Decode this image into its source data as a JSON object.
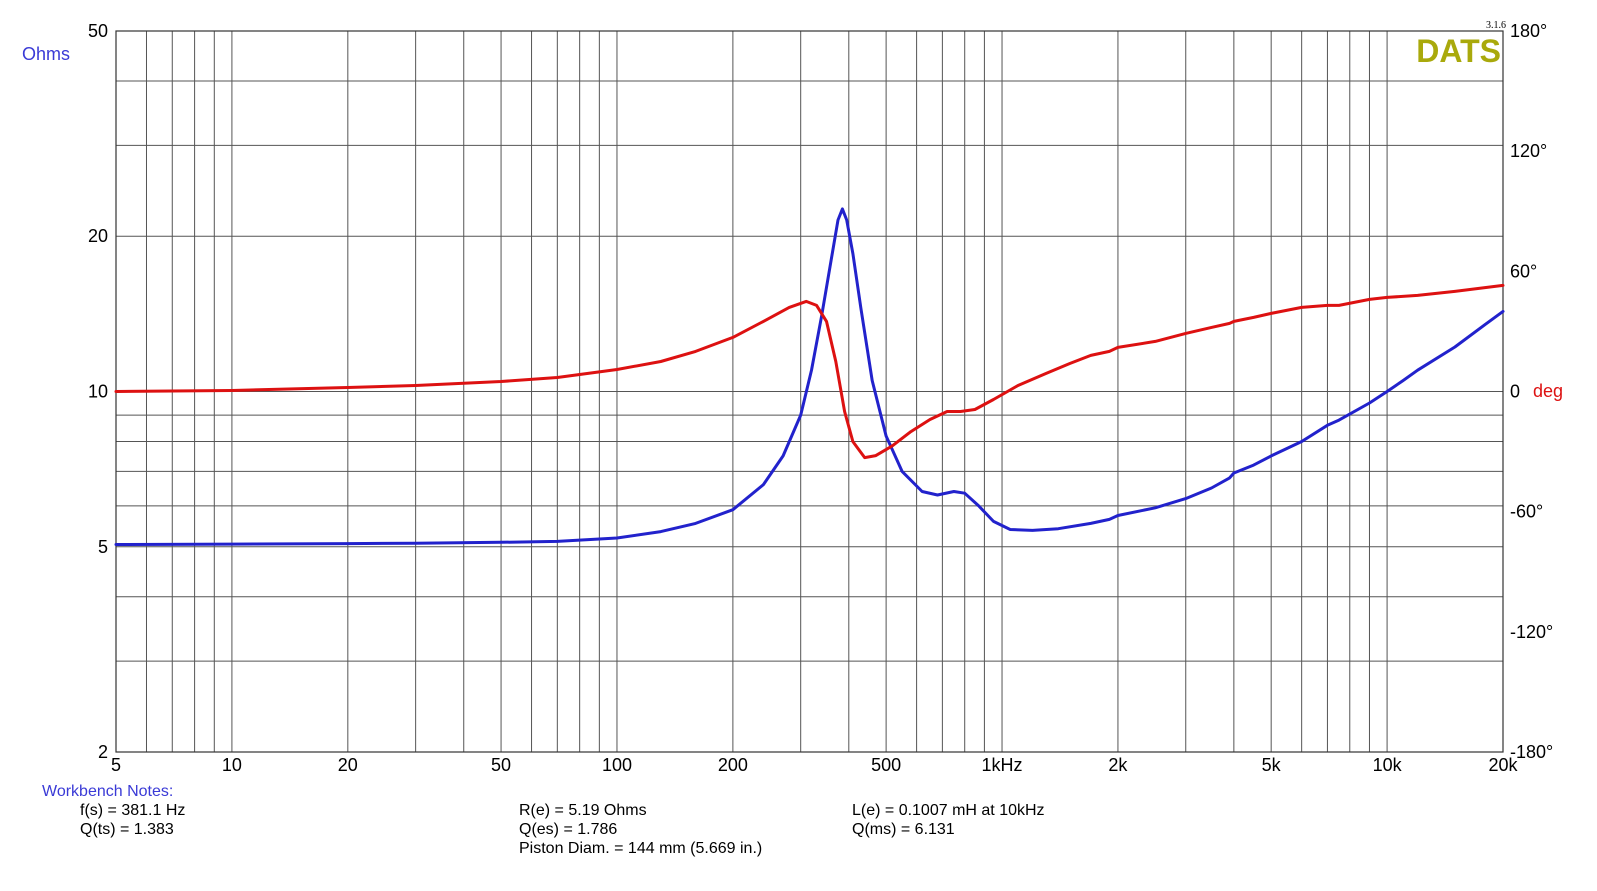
{
  "chart_data": {
    "type": "line",
    "x_scale": "log",
    "y_left_scale": "log",
    "xlim": [
      5,
      20000
    ],
    "ylim_left": [
      2,
      50
    ],
    "ylim_right": [
      -180,
      180
    ],
    "grid": true,
    "y_left_label": "Ohms",
    "y_right_label": "deg",
    "brand": "DATS",
    "version": "3.1.6",
    "x_ticks": [
      {
        "v": 5,
        "t": "5"
      },
      {
        "v": 10,
        "t": "10"
      },
      {
        "v": 20,
        "t": "20"
      },
      {
        "v": 50,
        "t": "50"
      },
      {
        "v": 100,
        "t": "100"
      },
      {
        "v": 200,
        "t": "200"
      },
      {
        "v": 500,
        "t": "500"
      },
      {
        "v": 1000,
        "t": "1kHz"
      },
      {
        "v": 2000,
        "t": "2k"
      },
      {
        "v": 5000,
        "t": "5k"
      },
      {
        "v": 10000,
        "t": "10k"
      },
      {
        "v": 20000,
        "t": "20k"
      }
    ],
    "y_left_ticks": [
      {
        "v": 2,
        "t": "2"
      },
      {
        "v": 5,
        "t": "5"
      },
      {
        "v": 10,
        "t": "10"
      },
      {
        "v": 20,
        "t": "20"
      },
      {
        "v": 50,
        "t": "50"
      }
    ],
    "y_right_ticks": [
      {
        "v": 180,
        "t": "180°"
      },
      {
        "v": 120,
        "t": "120°"
      },
      {
        "v": 60,
        "t": "60°"
      },
      {
        "v": 0,
        "t": "0"
      },
      {
        "v": -60,
        "t": "-60°"
      },
      {
        "v": -120,
        "t": "-120°"
      },
      {
        "v": -180,
        "t": "-180°"
      }
    ],
    "series": [
      {
        "color": "#2222cc",
        "axis": "left",
        "points": [
          [
            5,
            5.05
          ],
          [
            10,
            5.06
          ],
          [
            20,
            5.07
          ],
          [
            30,
            5.08
          ],
          [
            50,
            5.1
          ],
          [
            70,
            5.12
          ],
          [
            100,
            5.2
          ],
          [
            130,
            5.35
          ],
          [
            160,
            5.55
          ],
          [
            200,
            5.9
          ],
          [
            240,
            6.6
          ],
          [
            270,
            7.5
          ],
          [
            300,
            9.0
          ],
          [
            320,
            11.0
          ],
          [
            340,
            14.0
          ],
          [
            360,
            18.0
          ],
          [
            375,
            21.5
          ],
          [
            385,
            22.6
          ],
          [
            395,
            21.5
          ],
          [
            410,
            18.5
          ],
          [
            430,
            14.5
          ],
          [
            460,
            10.5
          ],
          [
            500,
            8.2
          ],
          [
            550,
            7.0
          ],
          [
            620,
            6.4
          ],
          [
            680,
            6.3
          ],
          [
            750,
            6.4
          ],
          [
            800,
            6.35
          ],
          [
            870,
            6.0
          ],
          [
            950,
            5.6
          ],
          [
            1050,
            5.4
          ],
          [
            1200,
            5.38
          ],
          [
            1400,
            5.42
          ],
          [
            1700,
            5.55
          ],
          [
            1900,
            5.65
          ],
          [
            2000,
            5.75
          ],
          [
            2500,
            5.95
          ],
          [
            3000,
            6.2
          ],
          [
            3500,
            6.5
          ],
          [
            3900,
            6.8
          ],
          [
            4000,
            6.95
          ],
          [
            4500,
            7.2
          ],
          [
            5000,
            7.5
          ],
          [
            6000,
            8.0
          ],
          [
            7000,
            8.6
          ],
          [
            7500,
            8.8
          ],
          [
            9000,
            9.5
          ],
          [
            10000,
            10.0
          ],
          [
            11000,
            10.5
          ],
          [
            12000,
            11.0
          ],
          [
            15000,
            12.2
          ],
          [
            18000,
            13.5
          ],
          [
            20000,
            14.3
          ]
        ]
      },
      {
        "color": "#dd1111",
        "axis": "right",
        "points": [
          [
            5,
            0
          ],
          [
            10,
            0.5
          ],
          [
            20,
            2
          ],
          [
            30,
            3
          ],
          [
            50,
            5
          ],
          [
            70,
            7
          ],
          [
            100,
            11
          ],
          [
            130,
            15
          ],
          [
            160,
            20
          ],
          [
            200,
            27
          ],
          [
            240,
            35
          ],
          [
            280,
            42
          ],
          [
            310,
            45
          ],
          [
            330,
            43
          ],
          [
            350,
            35
          ],
          [
            370,
            15
          ],
          [
            390,
            -10
          ],
          [
            410,
            -25
          ],
          [
            440,
            -33
          ],
          [
            470,
            -32
          ],
          [
            520,
            -27
          ],
          [
            580,
            -20
          ],
          [
            650,
            -14
          ],
          [
            720,
            -10
          ],
          [
            780,
            -10
          ],
          [
            850,
            -9
          ],
          [
            950,
            -4
          ],
          [
            1100,
            3
          ],
          [
            1300,
            9
          ],
          [
            1500,
            14
          ],
          [
            1700,
            18
          ],
          [
            1900,
            20
          ],
          [
            2000,
            22
          ],
          [
            2500,
            25
          ],
          [
            3000,
            29
          ],
          [
            3500,
            32
          ],
          [
            3900,
            34
          ],
          [
            4000,
            35
          ],
          [
            4500,
            37
          ],
          [
            5000,
            39
          ],
          [
            6000,
            42
          ],
          [
            7000,
            43
          ],
          [
            7500,
            43
          ],
          [
            9000,
            46
          ],
          [
            10000,
            47
          ],
          [
            12000,
            48
          ],
          [
            15000,
            50
          ],
          [
            20000,
            53
          ]
        ]
      }
    ]
  },
  "notes": {
    "title": "Workbench Notes:",
    "col1": [
      "f(s) = 381.1 Hz",
      "Q(ts) = 1.383"
    ],
    "col2": [
      "R(e) = 5.19 Ohms",
      "Q(es) = 1.786",
      "Piston Diam. = 144 mm (5.669 in.)"
    ],
    "col3": [
      "L(e) = 0.1007 mH at 10kHz",
      "Q(ms) = 6.131"
    ]
  },
  "colors": {
    "left_axis_label": "#3a3ad6",
    "right_axis_label": "#dd1111",
    "brand": "#a9a90c",
    "grid": "#555555"
  }
}
